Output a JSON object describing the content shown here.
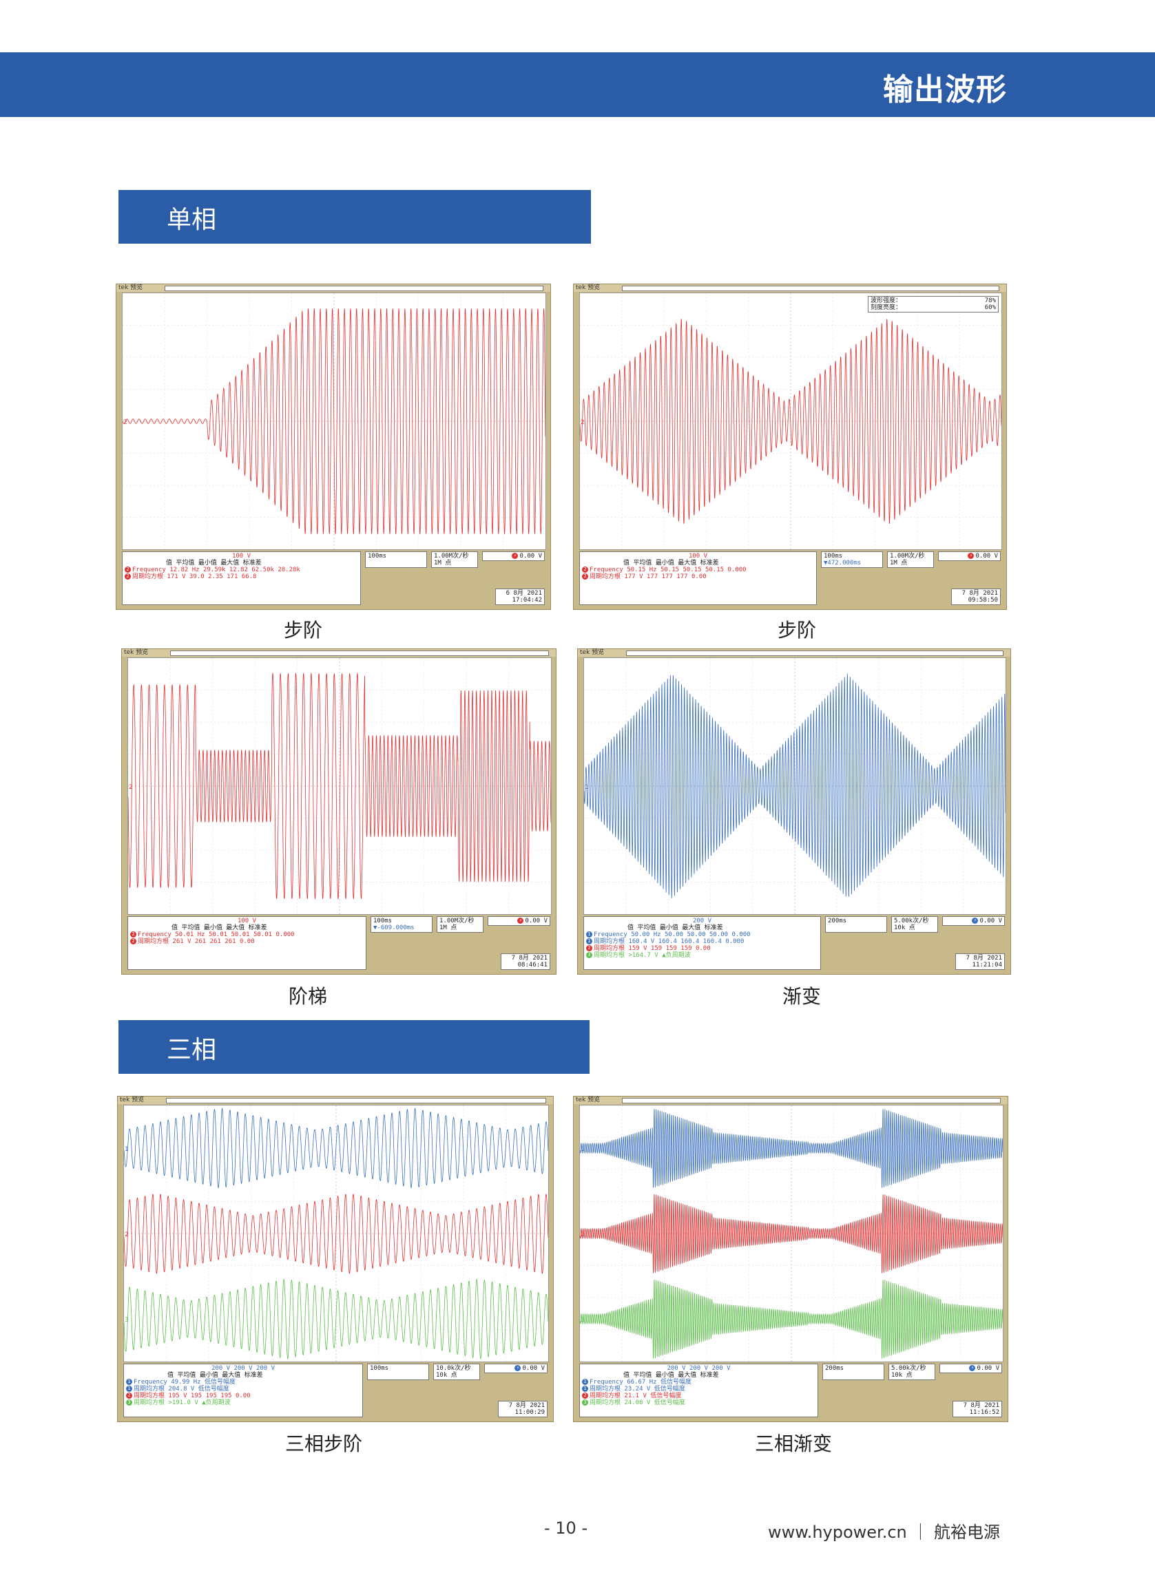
{
  "header": {
    "title": "输出波形"
  },
  "sections": {
    "single": "单相",
    "three": "三相"
  },
  "scopes": [
    {
      "id": "s1",
      "caption": "步阶",
      "top_label": "tek 预览",
      "ch_label": "100 V",
      "timebase": "100ms",
      "rate": "1.00M次/秒",
      "points": "1M 点",
      "trigger": "0.00 V",
      "offset": "",
      "meas_header": "值      平均值    最小值    最大值    标准差",
      "meas": [
        {
          "ch": "2",
          "name": "Frequency",
          "vals": "12.82 Hz  29.59k    12.82     62.50k    28.28k"
        },
        {
          "ch": "2",
          "name": "周期均方根",
          "vals": "171 V     39.0      2.35      171       66.8"
        }
      ],
      "date": "6 8月  2021",
      "time": "17:04:42",
      "color": "#e03030"
    },
    {
      "id": "s2",
      "caption": "步阶",
      "top_label": "tek 预览",
      "ch_label": "100 V",
      "timebase": "100ms",
      "rate": "1.00M次/秒",
      "points": "1M 点",
      "trigger": "0.00 V",
      "offset": "▼472.000ms",
      "meas_header": "值      平均值    最小值    最大值    标准差",
      "meas": [
        {
          "ch": "2",
          "name": "Frequency",
          "vals": "50.15 Hz  50.15     50.15     50.15     0.000"
        },
        {
          "ch": "2",
          "name": "周期均方根",
          "vals": "177 V     177       177       177       0.00"
        }
      ],
      "date": "7 8月  2021",
      "time": "09:58:50",
      "overlay": [
        {
          "k": "波形强度：",
          "v": "78%"
        },
        {
          "k": "刻度亮度：",
          "v": "60%"
        }
      ],
      "color": "#e03030"
    },
    {
      "id": "s3",
      "caption": "阶梯",
      "top_label": "tek 预览",
      "ch_label": "100 V",
      "timebase": "100ms",
      "rate": "1.00M次/秒",
      "points": "1M 点",
      "trigger": "0.00 V",
      "offset": "▼-609.000ms",
      "meas_header": "值      平均值    最小值    最大值    标准差",
      "meas": [
        {
          "ch": "2",
          "name": "Frequency",
          "vals": "50.01 Hz  50.01     50.01     50.01     0.000"
        },
        {
          "ch": "2",
          "name": "周期均方根",
          "vals": "261 V     261       261       261       0.00"
        }
      ],
      "date": "7 8月  2021",
      "time": "08:46:41",
      "color": "#e03030"
    },
    {
      "id": "s4",
      "caption": "渐变",
      "top_label": "tek 预览",
      "ch_label": "200 V",
      "timebase": "200ms",
      "rate": "5.00k次/秒",
      "points": "10k 点",
      "trigger": "0.00 V",
      "offset": "",
      "meas_header": "值      平均值    最小值    最大值    标准差",
      "meas": [
        {
          "ch": "1",
          "name": "Frequency",
          "vals": "50.00 Hz  50.00     50.00     50.00     0.000"
        },
        {
          "ch": "1",
          "name": "周期均方根",
          "vals": "160.4 V   160.4     160.4     160.4     0.000"
        },
        {
          "ch": "2",
          "name": "周期均方根",
          "vals": "159 V     159       159       159       0.00"
        },
        {
          "ch": "3",
          "name": "周期均方根",
          "vals": ">164.7 V  ▲负周期波"
        }
      ],
      "date": "7 8月  2021",
      "time": "11:21:04",
      "color": "#3a6fc0"
    },
    {
      "id": "s5",
      "caption": "三相步阶",
      "top_label": "tek 预览",
      "ch_label": "200 V    200 V    200 V",
      "timebase": "100ms",
      "rate": "10.0k次/秒",
      "points": "10k 点",
      "trigger": "0.00 V",
      "offset": "",
      "meas_header": "值      平均值    最小值    最大值    标准差",
      "meas": [
        {
          "ch": "1",
          "name": "Frequency",
          "vals": "49.99 Hz  低信号幅度"
        },
        {
          "ch": "1",
          "name": "周期均方根",
          "vals": "204.8 V   低信号幅度"
        },
        {
          "ch": "2",
          "name": "周期均方根",
          "vals": "195 V     195       195       195       0.00"
        },
        {
          "ch": "3",
          "name": "周期均方根",
          "vals": ">191.0 V  ▲负周期波"
        }
      ],
      "date": "7 8月  2021",
      "time": "11:00:29",
      "color": "#3a6fc0"
    },
    {
      "id": "s6",
      "caption": "三相渐变",
      "top_label": "tek 预览",
      "ch_label": "200 V    200 V    200 V",
      "timebase": "200ms",
      "rate": "5.00k次/秒",
      "points": "10k 点",
      "trigger": "0.00 V",
      "offset": "",
      "meas_header": "值      平均值    最小值    最大值    标准差",
      "meas": [
        {
          "ch": "1",
          "name": "Frequency",
          "vals": "66.67 Hz  低信号幅度"
        },
        {
          "ch": "1",
          "name": "周期均方根",
          "vals": "23.24 V   低信号幅度"
        },
        {
          "ch": "2",
          "name": "周期均方根",
          "vals": "21.1 V    低信号幅度"
        },
        {
          "ch": "3",
          "name": "周期均方根",
          "vals": "24.08 V   低信号幅度"
        }
      ],
      "date": "7 8月  2021",
      "time": "11:16:52",
      "color": "#3a6fc0"
    }
  ],
  "footer": {
    "page": "- 10 -",
    "site": "www.hypower.cn  ｜ 航裕电源"
  }
}
